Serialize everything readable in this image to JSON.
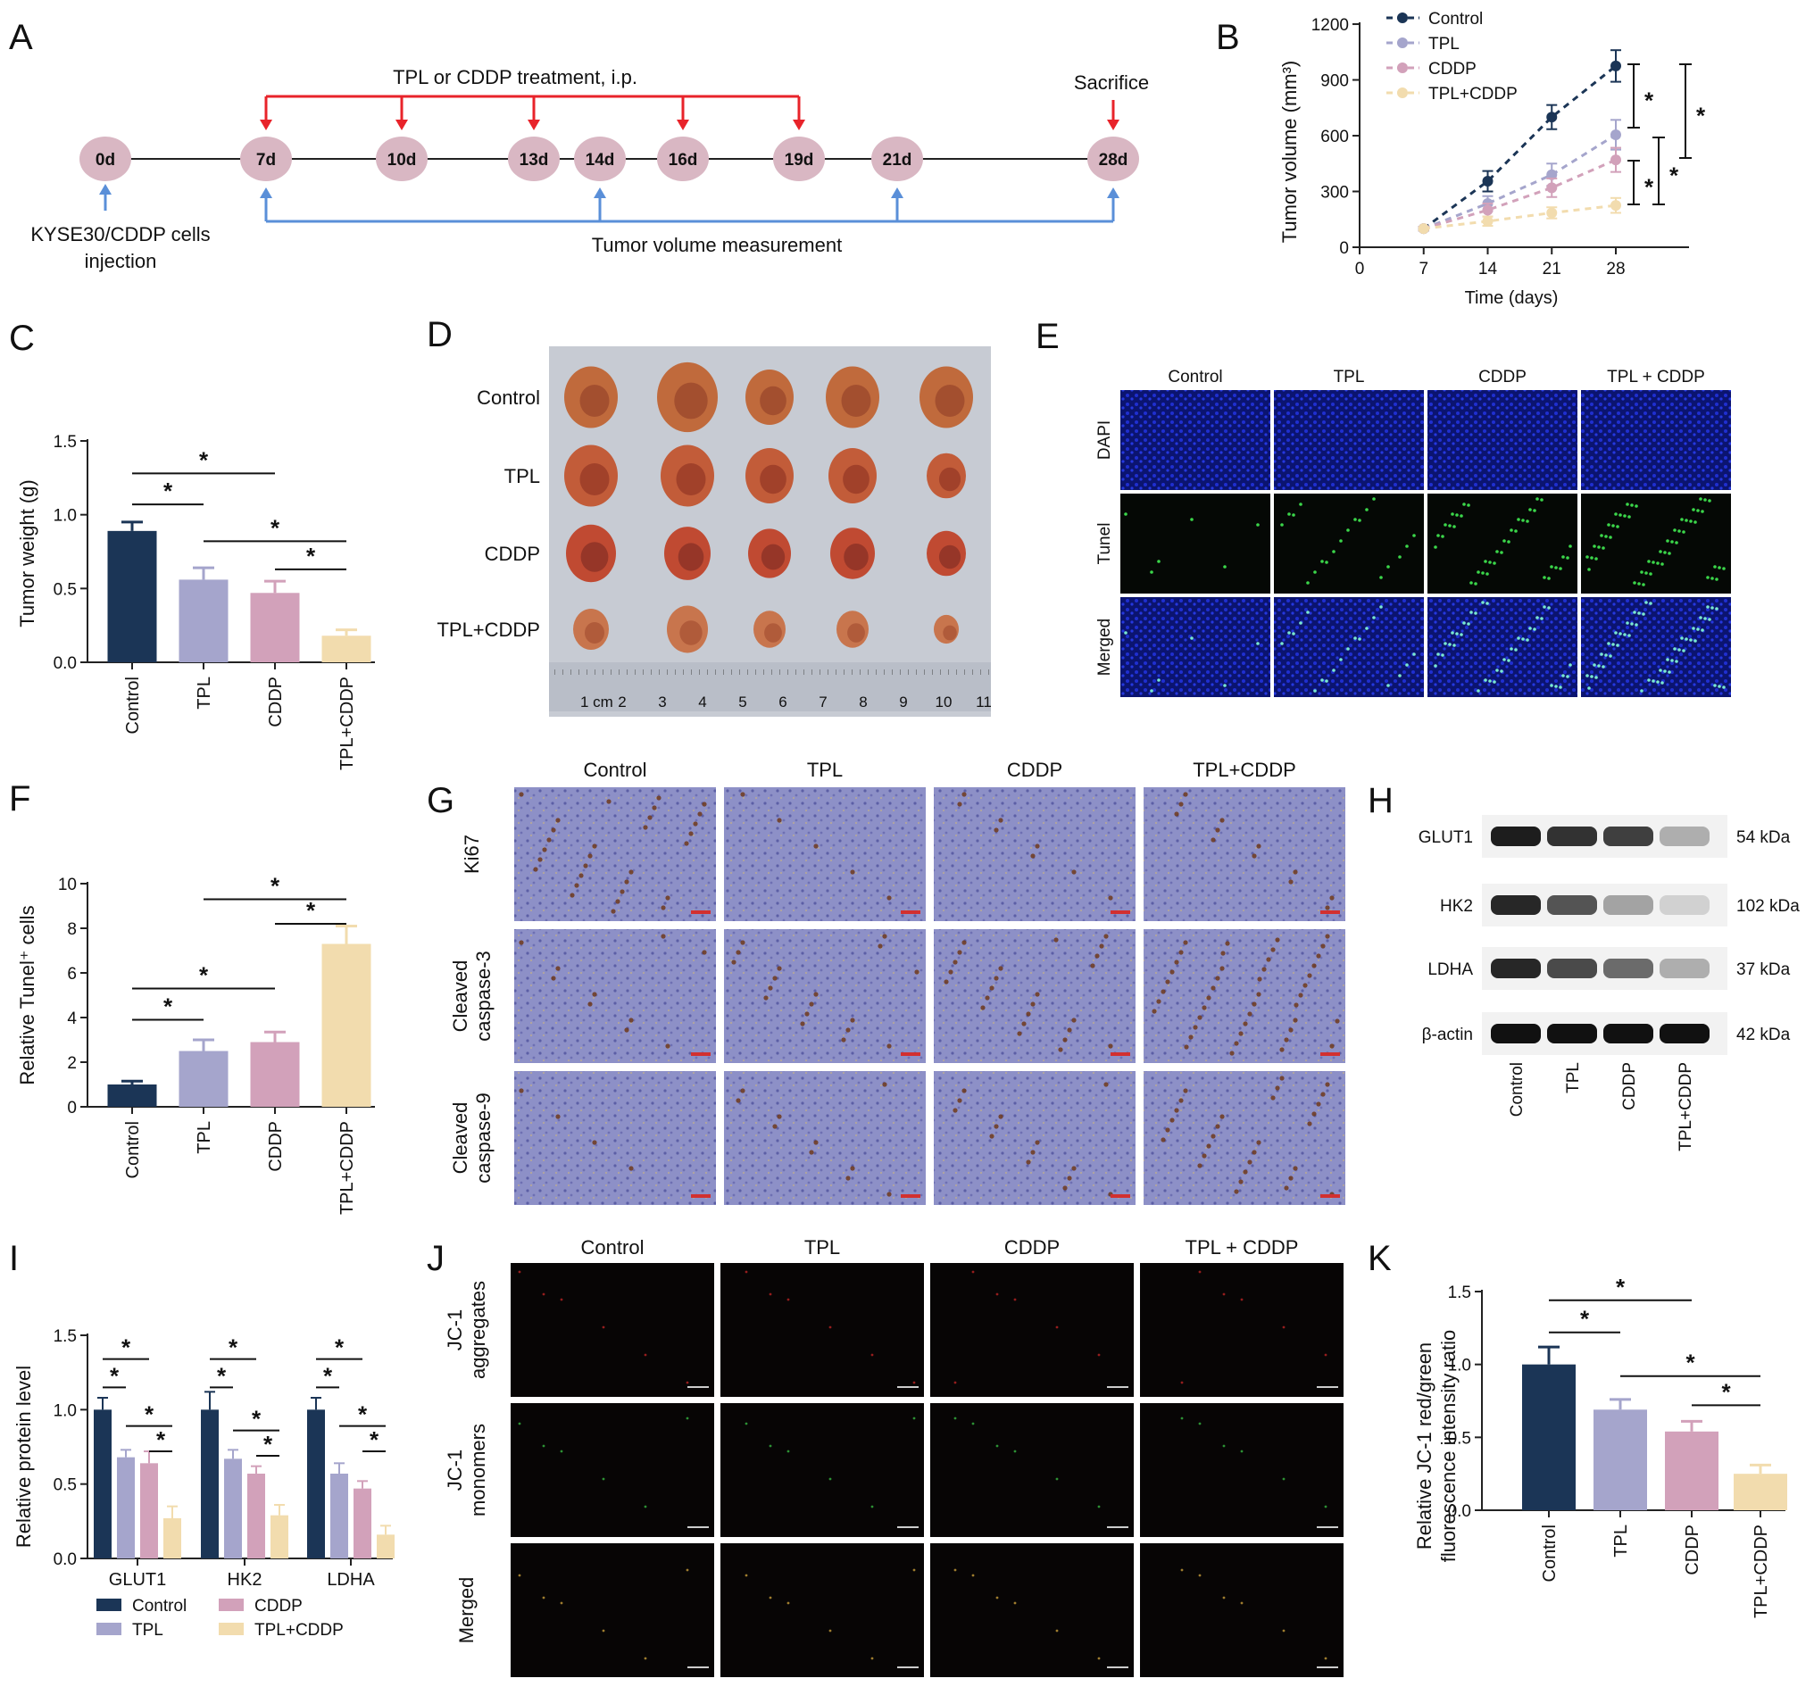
{
  "panels": {
    "A": "A",
    "B": "B",
    "C": "C",
    "D": "D",
    "E": "E",
    "F": "F",
    "G": "G",
    "H": "H",
    "I": "I",
    "J": "J",
    "K": "K"
  },
  "colors": {
    "control": "#1b3556",
    "tpl": "#a5a5cc",
    "cddp": "#d2a1ba",
    "combo": "#f2dcae",
    "red_arrow": "#e8232a",
    "blue_arrow": "#5a8fd8",
    "timeline_node": "#d9b7c3"
  },
  "panelA": {
    "treatment_label": "TPL or CDDP treatment, i.p.",
    "sacrifice_label": "Sacrifice",
    "injection_label_1": "KYSE30/CDDP cells",
    "injection_label_2": "injection",
    "measurement_label": "Tumor volume measurement",
    "days": [
      "0d",
      "7d",
      "10d",
      "13d",
      "14d",
      "16d",
      "19d",
      "21d",
      "28d"
    ]
  },
  "panelB": {
    "chart_data": {
      "type": "line",
      "xlabel": "Time (days)",
      "ylabel": "Tumor volume (mm³)",
      "xticks": [
        "0",
        "7",
        "14",
        "21",
        "28"
      ],
      "yticks": [
        "0",
        "300",
        "600",
        "900",
        "1200"
      ],
      "xlim": [
        0,
        36
      ],
      "ylim": [
        0,
        1200
      ],
      "legend_position": "top",
      "series": [
        {
          "name": "Control",
          "x": [
            7,
            14,
            21,
            28
          ],
          "y": [
            100,
            355,
            700,
            975
          ],
          "err": [
            10,
            55,
            65,
            85
          ]
        },
        {
          "name": "TPL",
          "x": [
            7,
            14,
            21,
            28
          ],
          "y": [
            100,
            235,
            390,
            605
          ],
          "err": [
            10,
            40,
            60,
            80
          ]
        },
        {
          "name": "CDDP",
          "x": [
            7,
            14,
            21,
            28
          ],
          "y": [
            100,
            200,
            320,
            470
          ],
          "err": [
            10,
            35,
            50,
            65
          ]
        },
        {
          "name": "TPL+CDDP",
          "x": [
            7,
            14,
            21,
            28
          ],
          "y": [
            100,
            140,
            185,
            225
          ],
          "err": [
            8,
            25,
            30,
            40
          ]
        }
      ],
      "annotations": [
        "*",
        "*",
        "*",
        "*"
      ]
    }
  },
  "panelC": {
    "chart_data": {
      "type": "bar",
      "ylabel": "Tumor weight (g)",
      "categories": [
        "Control",
        "TPL",
        "CDDP",
        "TPL+CDDP"
      ],
      "values": [
        0.89,
        0.56,
        0.47,
        0.18
      ],
      "errors": [
        0.06,
        0.08,
        0.08,
        0.04
      ],
      "yticks": [
        "0.0",
        "0.5",
        "1.0",
        "1.5"
      ],
      "ylim": [
        0,
        1.5
      ],
      "annotations": [
        "*",
        "*",
        "*",
        "*"
      ]
    }
  },
  "panelD": {
    "rows": [
      "Control",
      "TPL",
      "CDDP",
      "TPL+CDDP"
    ],
    "ruler_unit": "1 cm",
    "ruler_numbers": [
      "2",
      "3",
      "4",
      "5",
      "6",
      "7",
      "8",
      "9",
      "10",
      "11"
    ]
  },
  "panelE": {
    "columns": [
      "Control",
      "TPL",
      "CDDP",
      "TPL + CDDP"
    ],
    "rows": [
      "DAPI",
      "Tunel",
      "Merged"
    ]
  },
  "panelF": {
    "chart_data": {
      "type": "bar",
      "ylabel": "Relative Tunel⁺ cells",
      "categories": [
        "Control",
        "TPL",
        "CDDP",
        "TPL+CDDP"
      ],
      "values": [
        1.0,
        2.5,
        2.9,
        7.3
      ],
      "errors": [
        0.15,
        0.5,
        0.45,
        0.8
      ],
      "yticks": [
        "0",
        "2",
        "4",
        "6",
        "8",
        "10"
      ],
      "ylim": [
        0,
        10
      ],
      "annotations": [
        "*",
        "*",
        "*",
        "*"
      ]
    }
  },
  "panelG": {
    "columns": [
      "Control",
      "TPL",
      "CDDP",
      "TPL+CDDP"
    ],
    "rows": [
      [
        "Ki67"
      ],
      [
        "Cleaved",
        "caspase-3"
      ],
      [
        "Cleaved",
        "caspase-9"
      ]
    ]
  },
  "panelH": {
    "proteins": [
      "GLUT1",
      "HK2",
      "LDHA",
      "β-actin"
    ],
    "sizes": [
      "54 kDa",
      "102 kDa",
      "37 kDa",
      "42 kDa"
    ],
    "lanes": [
      "Control",
      "TPL",
      "CDDP",
      "TPL+CDDP"
    ]
  },
  "panelI": {
    "chart_data": {
      "type": "bar",
      "ylabel": "Relative protein level",
      "categories": [
        "GLUT1",
        "HK2",
        "LDHA"
      ],
      "series": [
        {
          "name": "Control",
          "values": [
            1.0,
            1.0,
            1.0
          ],
          "errors": [
            0.08,
            0.12,
            0.08
          ]
        },
        {
          "name": "TPL",
          "values": [
            0.68,
            0.67,
            0.57
          ],
          "errors": [
            0.05,
            0.06,
            0.07
          ]
        },
        {
          "name": "CDDP",
          "values": [
            0.64,
            0.57,
            0.47
          ],
          "errors": [
            0.08,
            0.05,
            0.05
          ]
        },
        {
          "name": "TPL+CDDP",
          "values": [
            0.27,
            0.29,
            0.16
          ],
          "errors": [
            0.08,
            0.07,
            0.06
          ]
        }
      ],
      "yticks": [
        "0.0",
        "0.5",
        "1.0",
        "1.5"
      ],
      "ylim": [
        0,
        1.5
      ],
      "legend_position": "bottom",
      "annotations": [
        "*",
        "*",
        "*",
        "*",
        "*",
        "*",
        "*",
        "*",
        "*",
        "*",
        "*",
        "*"
      ]
    }
  },
  "panelJ": {
    "columns": [
      "Control",
      "TPL",
      "CDDP",
      "TPL + CDDP"
    ],
    "rows": [
      [
        "JC-1",
        "aggregates"
      ],
      [
        "JC-1",
        "monomers"
      ],
      [
        "Merged"
      ]
    ]
  },
  "panelK": {
    "chart_data": {
      "type": "bar",
      "ylabel_1": "Relative JC-1 red/green",
      "ylabel_2": "fluorescence intensity ratio",
      "categories": [
        "Control",
        "TPL",
        "CDDP",
        "TPL+CDDP"
      ],
      "values": [
        1.0,
        0.69,
        0.54,
        0.25
      ],
      "errors": [
        0.12,
        0.07,
        0.07,
        0.06
      ],
      "yticks": [
        "0.0",
        "0.5",
        "1.0",
        "1.5"
      ],
      "ylim": [
        0,
        1.5
      ],
      "annotations": [
        "*",
        "*",
        "*",
        "*"
      ]
    }
  }
}
